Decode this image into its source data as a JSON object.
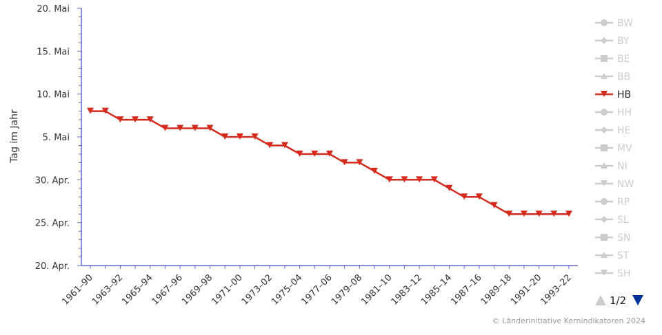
{
  "chart_data": {
    "type": "line",
    "ylabel": "Tag im Jahr",
    "y_ticks": [
      {
        "value": 110,
        "label": "20. Apr."
      },
      {
        "value": 115,
        "label": "25. Apr."
      },
      {
        "value": 120,
        "label": "30. Apr."
      },
      {
        "value": 125,
        "label": "5. Mai"
      },
      {
        "value": 130,
        "label": "10. Mai"
      },
      {
        "value": 135,
        "label": "15. Mai"
      },
      {
        "value": 140,
        "label": "20. Mai"
      }
    ],
    "ylim": [
      110,
      140
    ],
    "x": [
      "1961–90",
      "1962–91",
      "1963–92",
      "1964–93",
      "1965–94",
      "1966–95",
      "1967–96",
      "1968–97",
      "1969–98",
      "1970–99",
      "1971–00",
      "1972–01",
      "1973–02",
      "1974–03",
      "1975–04",
      "1976–05",
      "1977–06",
      "1978–07",
      "1979–08",
      "1980–09",
      "1981–10",
      "1982–11",
      "1983–12",
      "1984–13",
      "1985–14",
      "1986–15",
      "1987–16",
      "1988–17",
      "1989–18",
      "1990–19",
      "1991–20",
      "1992–21",
      "1993–22"
    ],
    "x_tick_labels": [
      "1961–90",
      "1963–92",
      "1965–94",
      "1967–96",
      "1969–98",
      "1971–00",
      "1973–02",
      "1975–04",
      "1977–06",
      "1979–08",
      "1981–10",
      "1983–12",
      "1985–14",
      "1987–16",
      "1989–18",
      "1991–20",
      "1993–22"
    ],
    "series": [
      {
        "name": "HB",
        "color": "#d52b1e",
        "marker": "triangle-down",
        "values": [
          128,
          128,
          127,
          127,
          127,
          126,
          126,
          126,
          126,
          125,
          125,
          125,
          124,
          124,
          123,
          123,
          123,
          122,
          122,
          121,
          120,
          120,
          120,
          120,
          119,
          118,
          118,
          117,
          116,
          116,
          116,
          116,
          116
        ]
      }
    ],
    "grid": false,
    "legend_placement": "right",
    "legend": {
      "items": [
        {
          "name": "BW",
          "active": false,
          "marker": "circle"
        },
        {
          "name": "BY",
          "active": false,
          "marker": "diamond"
        },
        {
          "name": "BE",
          "active": false,
          "marker": "square"
        },
        {
          "name": "BB",
          "active": false,
          "marker": "triangle"
        },
        {
          "name": "HB",
          "active": true,
          "marker": "triangle-down"
        },
        {
          "name": "HH",
          "active": false,
          "marker": "circle"
        },
        {
          "name": "HE",
          "active": false,
          "marker": "diamond"
        },
        {
          "name": "MV",
          "active": false,
          "marker": "square"
        },
        {
          "name": "NI",
          "active": false,
          "marker": "triangle"
        },
        {
          "name": "NW",
          "active": false,
          "marker": "triangle-down"
        },
        {
          "name": "RP",
          "active": false,
          "marker": "circle"
        },
        {
          "name": "SL",
          "active": false,
          "marker": "diamond"
        },
        {
          "name": "SN",
          "active": false,
          "marker": "square"
        },
        {
          "name": "ST",
          "active": false,
          "marker": "triangle"
        },
        {
          "name": "SH",
          "active": false,
          "marker": "triangle-down"
        }
      ],
      "page_label": "1/2"
    },
    "credit": "© Länderinitiative Kernindikatoren 2024"
  },
  "colors": {
    "axis": "#6666cc",
    "inactive": "#cccccc",
    "series": "#d52b1e",
    "pager_active": "#003399",
    "pager_inactive": "#cccccc"
  }
}
